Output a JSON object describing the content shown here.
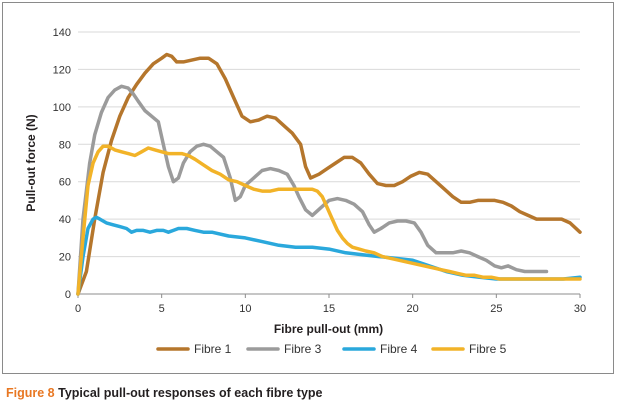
{
  "caption": {
    "label": "Figure 8",
    "text": "Typical pull-out responses of each fibre type"
  },
  "chart_data": {
    "type": "line",
    "title": "",
    "xlabel": "Fibre pull-out (mm)",
    "ylabel": "Pull-out force (N)",
    "xlim": [
      0,
      30
    ],
    "ylim": [
      0,
      140
    ],
    "xticks": [
      0,
      5,
      10,
      15,
      20,
      25,
      30
    ],
    "yticks": [
      0,
      20,
      40,
      60,
      80,
      100,
      120,
      140
    ],
    "legend_position": "bottom",
    "grid": "horizontal",
    "series": [
      {
        "name": "Fibre 1",
        "color": "#b5762c",
        "x": [
          0,
          0.5,
          1,
          1.5,
          2,
          2.5,
          3,
          3.5,
          4,
          4.5,
          5,
          5.3,
          5.6,
          5.9,
          6.3,
          6.8,
          7.3,
          7.8,
          8.3,
          8.8,
          9.3,
          9.8,
          10.3,
          10.8,
          11.3,
          11.8,
          12.3,
          12.8,
          13.3,
          13.6,
          13.9,
          14.4,
          14.9,
          15.4,
          15.9,
          16.4,
          16.9,
          17.4,
          17.9,
          18.4,
          18.9,
          19.4,
          19.9,
          20.4,
          20.9,
          21.4,
          21.9,
          22.4,
          22.9,
          23.4,
          23.9,
          24.4,
          24.9,
          25.4,
          25.9,
          26.4,
          26.9,
          27.4,
          27.9,
          28.4,
          28.9,
          29.4,
          30
        ],
        "y": [
          0,
          12,
          40,
          65,
          82,
          95,
          105,
          112,
          118,
          123,
          126,
          128,
          127,
          124,
          124,
          125,
          126,
          126,
          123,
          115,
          105,
          95,
          92,
          93,
          95,
          94,
          90,
          86,
          80,
          68,
          62,
          64,
          67,
          70,
          73,
          73,
          70,
          64,
          59,
          58,
          58,
          60,
          63,
          65,
          64,
          60,
          56,
          52,
          49,
          49,
          50,
          50,
          50,
          49,
          47,
          44,
          42,
          40,
          40,
          40,
          40,
          38,
          33
        ]
      },
      {
        "name": "Fibre 3",
        "color": "#9b9b9b",
        "x": [
          0,
          0.3,
          0.7,
          1,
          1.4,
          1.8,
          2.2,
          2.6,
          3,
          3.3,
          3.6,
          4,
          4.4,
          4.8,
          5.1,
          5.4,
          5.7,
          6,
          6.3,
          6.7,
          7.1,
          7.5,
          7.9,
          8.3,
          8.7,
          9.1,
          9.4,
          9.7,
          10,
          10.5,
          11,
          11.5,
          12,
          12.5,
          12.9,
          13.2,
          13.6,
          14,
          14.5,
          15,
          15.5,
          16,
          16.5,
          17,
          17.4,
          17.7,
          18.1,
          18.6,
          19.1,
          19.6,
          20.1,
          20.5,
          20.9,
          21.4,
          21.9,
          22.4,
          22.9,
          23.4,
          23.9,
          24.4,
          24.9,
          25.3,
          25.7,
          26.2,
          26.7,
          27.2,
          27.7,
          28
        ],
        "y": [
          0,
          40,
          70,
          85,
          97,
          105,
          109,
          111,
          110,
          107,
          103,
          98,
          95,
          92,
          80,
          68,
          60,
          62,
          70,
          76,
          79,
          80,
          79,
          76,
          73,
          62,
          50,
          52,
          58,
          62,
          66,
          67,
          66,
          64,
          58,
          52,
          45,
          42,
          46,
          50,
          51,
          50,
          48,
          44,
          37,
          33,
          35,
          38,
          39,
          39,
          38,
          33,
          26,
          22,
          22,
          22,
          23,
          22,
          20,
          18,
          15,
          14,
          15,
          13,
          12,
          12,
          12,
          12
        ]
      },
      {
        "name": "Fibre 4",
        "color": "#2aa8dc",
        "x": [
          0,
          0.3,
          0.6,
          0.9,
          1.1,
          1.3,
          1.7,
          2.1,
          2.5,
          2.9,
          3.2,
          3.5,
          3.9,
          4.3,
          4.7,
          5.1,
          5.4,
          5.7,
          6,
          6.5,
          7,
          7.5,
          8,
          9,
          10,
          11,
          12,
          13,
          14,
          15,
          16,
          17,
          18,
          19,
          20,
          21,
          22,
          23,
          24,
          25,
          26,
          27,
          28,
          29,
          30
        ],
        "y": [
          0,
          20,
          35,
          40,
          41,
          40,
          38,
          37,
          36,
          35,
          33,
          34,
          34,
          33,
          34,
          34,
          33,
          34,
          35,
          35,
          34,
          33,
          33,
          31,
          30,
          28,
          26,
          25,
          25,
          24,
          22,
          21,
          20,
          19,
          18,
          15,
          12,
          10,
          9,
          8,
          8,
          8,
          8,
          8,
          9
        ]
      },
      {
        "name": "Fibre 5",
        "color": "#f2b328",
        "x": [
          0,
          0.3,
          0.6,
          0.9,
          1.2,
          1.5,
          1.8,
          2.2,
          2.6,
          3,
          3.4,
          3.8,
          4.2,
          4.6,
          5,
          5.4,
          5.8,
          6.2,
          6.6,
          7,
          7.5,
          8,
          8.5,
          9,
          9.5,
          10,
          10.5,
          11,
          11.5,
          12,
          12.5,
          13,
          13.5,
          14,
          14.3,
          14.6,
          14.9,
          15.2,
          15.5,
          15.8,
          16.1,
          16.4,
          16.8,
          17.2,
          17.7,
          18.2,
          18.7,
          19.2,
          19.7,
          20.2,
          20.7,
          21.2,
          21.7,
          22.2,
          22.7,
          23.2,
          23.7,
          24.2,
          24.7,
          25.2,
          26,
          27,
          28,
          29,
          30
        ],
        "y": [
          0,
          30,
          58,
          70,
          76,
          79,
          79,
          77,
          76,
          75,
          74,
          76,
          78,
          77,
          76,
          75,
          75,
          75,
          74,
          72,
          69,
          66,
          64,
          61,
          60,
          58,
          56,
          55,
          55,
          56,
          56,
          56,
          56,
          56,
          55,
          52,
          46,
          40,
          34,
          30,
          27,
          25,
          24,
          23,
          22,
          20,
          19,
          18,
          17,
          16,
          15,
          14,
          13,
          12,
          11,
          10,
          10,
          9,
          9,
          8,
          8,
          8,
          8,
          8,
          8
        ]
      }
    ]
  }
}
